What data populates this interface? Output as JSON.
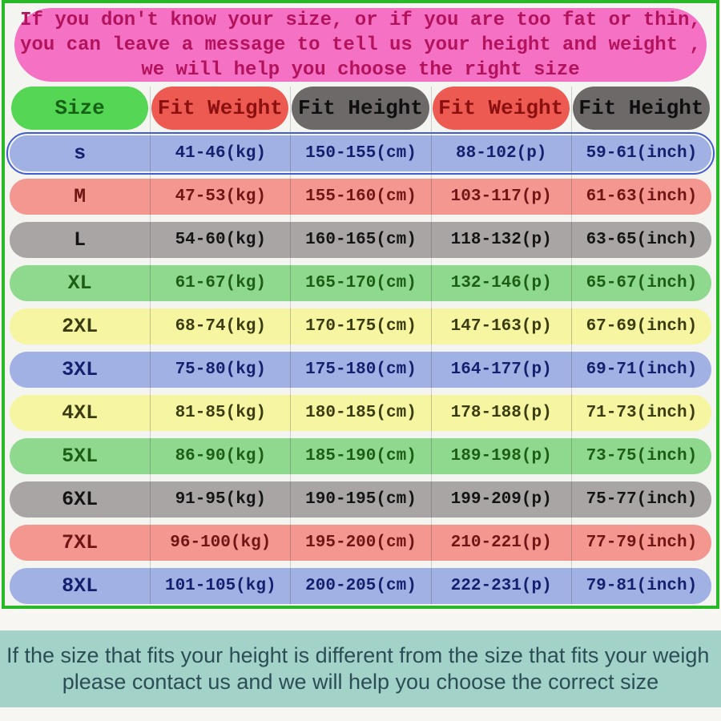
{
  "banner": {
    "lines": [
      "If you don't know your size, or if you are too fat or thin,",
      "you can leave a message to tell us your height and weight ,",
      "we will help you choose the right size"
    ]
  },
  "chart_data": {
    "type": "table",
    "title": "Garment size chart",
    "columns": [
      "Size",
      "Fit Weight",
      "Fit Height",
      "Fit Weight",
      "Fit Height"
    ],
    "rows": [
      [
        "s",
        "41-46(kg)",
        "150-155(cm)",
        "88-102(p)",
        "59-61(inch)"
      ],
      [
        "M",
        "47-53(kg)",
        "155-160(cm)",
        "103-117(p)",
        "61-63(inch)"
      ],
      [
        "L",
        "54-60(kg)",
        "160-165(cm)",
        "118-132(p)",
        "63-65(inch)"
      ],
      [
        "XL",
        "61-67(kg)",
        "165-170(cm)",
        "132-146(p)",
        "65-67(inch)"
      ],
      [
        "2XL",
        "68-74(kg)",
        "170-175(cm)",
        "147-163(p)",
        "67-69(inch)"
      ],
      [
        "3XL",
        "75-80(kg)",
        "175-180(cm)",
        "164-177(p)",
        "69-71(inch)"
      ],
      [
        "4XL",
        "81-85(kg)",
        "180-185(cm)",
        "178-188(p)",
        "71-73(inch)"
      ],
      [
        "5XL",
        "86-90(kg)",
        "185-190(cm)",
        "189-198(p)",
        "73-75(inch)"
      ],
      [
        "6XL",
        "91-95(kg)",
        "190-195(cm)",
        "199-209(p)",
        "75-77(inch)"
      ],
      [
        "7XL",
        "96-100(kg)",
        "195-200(cm)",
        "210-221(p)",
        "77-79(inch)"
      ],
      [
        "8XL",
        "101-105(kg)",
        "200-205(cm)",
        "222-231(p)",
        "79-81(inch)"
      ]
    ]
  },
  "styles": {
    "header_fills": [
      "#55d655",
      "#ec5a51",
      "#6c6968",
      "#ec5a51",
      "#6c6968"
    ],
    "header_text_colors": [
      "#156215",
      "#8c1010",
      "#0f0f0f",
      "#8c1010",
      "#0f0f0f"
    ],
    "row_fills": [
      "#a1b1e4",
      "#f39790",
      "#a8a5a4",
      "#8fd98f",
      "#f5f5a2",
      "#a1b1e4",
      "#f5f5a2",
      "#8fd98f",
      "#a8a5a4",
      "#f39790",
      "#a1b1e4"
    ],
    "row_text_colors": [
      "#141f6e",
      "#701414",
      "#141414",
      "#1c5e14",
      "#3c3c12",
      "#141f6e",
      "#3c3c12",
      "#1c5e14",
      "#141414",
      "#701414",
      "#141f6e"
    ],
    "selected_row_index": 0
  },
  "colors": {
    "frame_green": "#28b828",
    "page_bg": "#f7f6f3",
    "inner_bg": "#f4f4f1",
    "gridline": "#cbcbc9",
    "banner_bg": "#f471c3",
    "banner_text": "#b3135c",
    "selected_outline": "#3f5ed2",
    "footer_bg": "#a3d2c9",
    "footer_text": "#2b4e54"
  },
  "footer": {
    "line1": "If the size that fits your height is different from the size that fits your weigh",
    "line2": "please contact us and we will help you choose the correct size"
  }
}
